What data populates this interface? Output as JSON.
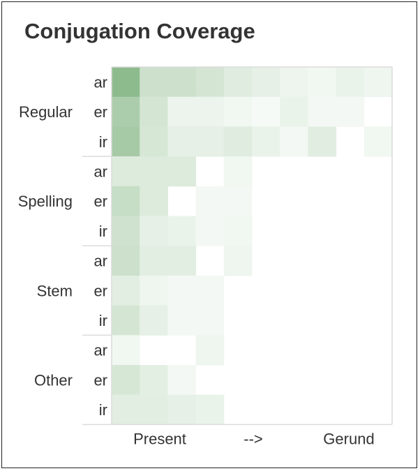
{
  "chart_data": {
    "type": "heatmap",
    "title": "Conjugation Coverage",
    "xlabel": "",
    "ylabel": "",
    "x_tick_labels": [
      "Present",
      "-->",
      "Gerund"
    ],
    "groups": [
      "Regular",
      "Spelling",
      "Stem",
      "Other"
    ],
    "row_labels": [
      "ar",
      "er",
      "ir"
    ],
    "columns": 10,
    "value_range": [
      0,
      1
    ],
    "color_low": "#ffffff",
    "color_high": "#8dbb8d",
    "grid": false,
    "legend": "none",
    "values": [
      [
        1.0,
        0.45,
        0.45,
        0.38,
        0.28,
        0.22,
        0.15,
        0.12,
        0.18,
        0.14
      ],
      [
        0.74,
        0.38,
        0.16,
        0.16,
        0.12,
        0.08,
        0.18,
        0.1,
        0.1,
        0.0
      ],
      [
        0.78,
        0.36,
        0.22,
        0.22,
        0.28,
        0.18,
        0.1,
        0.26,
        0.0,
        0.12
      ],
      [
        0.3,
        0.3,
        0.3,
        0.0,
        0.12,
        0.0,
        0.0,
        0.0,
        0.0,
        0.0
      ],
      [
        0.5,
        0.3,
        0.0,
        0.1,
        0.1,
        0.0,
        0.0,
        0.0,
        0.0,
        0.0
      ],
      [
        0.42,
        0.22,
        0.18,
        0.1,
        0.12,
        0.0,
        0.0,
        0.0,
        0.0,
        0.0
      ],
      [
        0.45,
        0.25,
        0.25,
        0.0,
        0.14,
        0.0,
        0.0,
        0.0,
        0.0,
        0.0
      ],
      [
        0.25,
        0.14,
        0.1,
        0.1,
        0.0,
        0.0,
        0.0,
        0.0,
        0.0,
        0.0
      ],
      [
        0.38,
        0.22,
        0.1,
        0.1,
        0.0,
        0.0,
        0.0,
        0.0,
        0.0,
        0.0
      ],
      [
        0.12,
        0.0,
        0.0,
        0.14,
        0.0,
        0.0,
        0.0,
        0.0,
        0.0,
        0.0
      ],
      [
        0.36,
        0.24,
        0.1,
        0.0,
        0.0,
        0.0,
        0.0,
        0.0,
        0.0,
        0.0
      ],
      [
        0.25,
        0.25,
        0.22,
        0.18,
        0.0,
        0.0,
        0.0,
        0.0,
        0.0,
        0.0
      ]
    ]
  }
}
